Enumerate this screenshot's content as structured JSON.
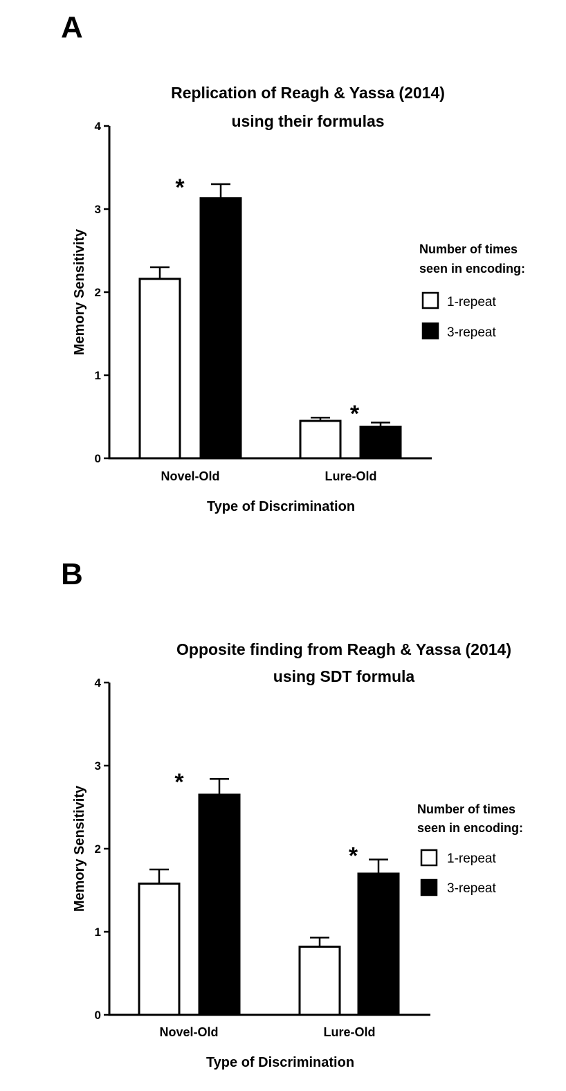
{
  "chart_data": [
    {
      "type": "bar",
      "panel": "A",
      "title_lines": [
        "Replication of Reagh & Yassa (2014)",
        "using their formulas"
      ],
      "xlabel": "Type of Discrimination",
      "ylabel": "Memory Sensitivity",
      "ylim": [
        0,
        4
      ],
      "yticks": [
        "0",
        "1",
        "2",
        "3",
        "4"
      ],
      "categories": [
        "Novel-Old",
        "Lure-Old"
      ],
      "series": [
        {
          "name": "1-repeat",
          "values": [
            2.16,
            0.45
          ],
          "errors": [
            0.14,
            0.04
          ],
          "color": "#ffffff"
        },
        {
          "name": "3-repeat",
          "values": [
            3.13,
            0.38
          ],
          "errors": [
            0.17,
            0.05
          ],
          "color": "#000000"
        }
      ],
      "annotations": [
        {
          "text": "*",
          "category": "Novel-Old"
        },
        {
          "text": "*",
          "category": "Lure-Old"
        }
      ],
      "legend": {
        "title_lines": [
          "Number of times",
          "seen in encoding:"
        ],
        "entries": [
          "1-repeat",
          "3-repeat"
        ],
        "placement": "right"
      },
      "grid": false
    },
    {
      "type": "bar",
      "panel": "B",
      "title_lines": [
        "Opposite finding from Reagh & Yassa (2014)",
        "using SDT formula"
      ],
      "xlabel": "Type of Discrimination",
      "ylabel": "Memory Sensitivity",
      "ylim": [
        0,
        4
      ],
      "yticks": [
        "0",
        "1",
        "2",
        "3",
        "4"
      ],
      "categories": [
        "Novel-Old",
        "Lure-Old"
      ],
      "series": [
        {
          "name": "1-repeat",
          "values": [
            1.58,
            0.82
          ],
          "errors": [
            0.17,
            0.11
          ],
          "color": "#ffffff"
        },
        {
          "name": "3-repeat",
          "values": [
            2.65,
            1.7
          ],
          "errors": [
            0.19,
            0.17
          ],
          "color": "#000000"
        }
      ],
      "annotations": [
        {
          "text": "*",
          "category": "Novel-Old"
        },
        {
          "text": "*",
          "category": "Lure-Old"
        }
      ],
      "legend": {
        "title_lines": [
          "Number of times",
          "seen in encoding:"
        ],
        "entries": [
          "1-repeat",
          "3-repeat"
        ],
        "placement": "right"
      },
      "grid": false
    }
  ]
}
